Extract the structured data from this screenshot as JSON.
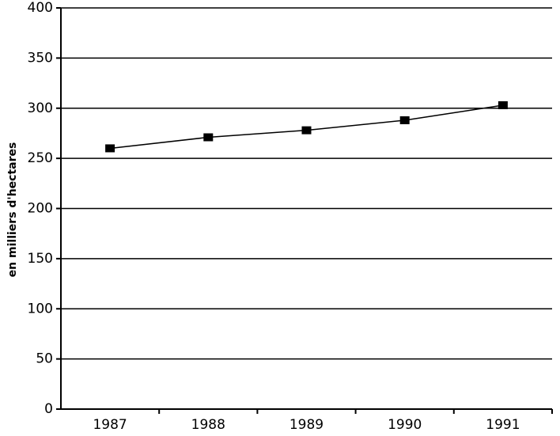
{
  "chart_data": {
    "type": "line",
    "y_label": "en milliers d'hectares",
    "categories": [
      "1987",
      "1988",
      "1989",
      "1990",
      "1991"
    ],
    "values": [
      260,
      271,
      278,
      288,
      303
    ],
    "color": "#000000",
    "ylim": [
      0,
      400
    ],
    "yticks": [
      0,
      50,
      100,
      150,
      200,
      250,
      300,
      350,
      400
    ],
    "grid": true
  }
}
